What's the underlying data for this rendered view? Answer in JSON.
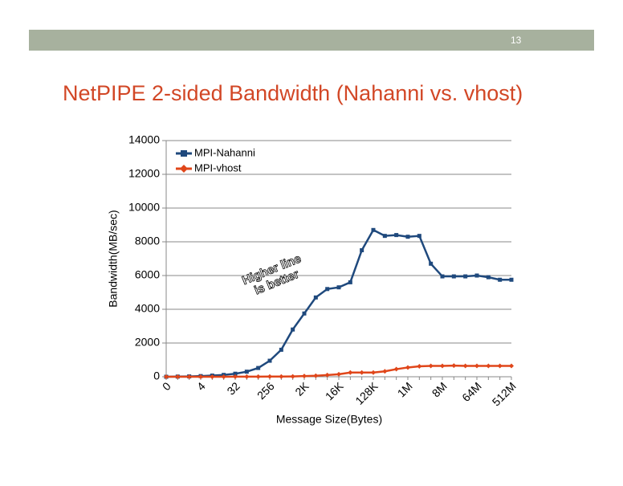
{
  "slide_number": "13",
  "chart_data": {
    "type": "line",
    "title": "NetPIPE 2-sided Bandwidth (Nahanni vs. vhost)",
    "x_label": "Message Size(Bytes)",
    "y_label": "Bandwidth(MB/sec)",
    "annotation": "Higher line is better",
    "categories": [
      "0",
      null,
      null,
      "4",
      null,
      null,
      "32",
      null,
      null,
      "256",
      null,
      null,
      "2K",
      null,
      null,
      "16K",
      null,
      null,
      "128K",
      null,
      null,
      "1M",
      null,
      null,
      "8M",
      null,
      null,
      "64M",
      null,
      null,
      "512M"
    ],
    "series": [
      {
        "name": "MPI-Nahanni",
        "color": "#1f497d",
        "values": [
          0,
          10,
          20,
          40,
          70,
          110,
          180,
          300,
          520,
          950,
          1600,
          2800,
          3750,
          4700,
          5200,
          5300,
          5600,
          7500,
          8700,
          8350,
          8400,
          8300,
          8350,
          6700,
          5950,
          5950,
          5950,
          6000,
          5900,
          5750,
          5750
        ]
      },
      {
        "name": "MPI-vhost",
        "color": "#e0461a",
        "values": [
          0,
          0,
          0,
          0,
          0,
          0,
          5,
          5,
          5,
          10,
          10,
          20,
          40,
          60,
          100,
          150,
          250,
          250,
          250,
          320,
          450,
          550,
          620,
          640,
          640,
          660,
          640,
          640,
          640,
          640,
          640
        ]
      }
    ],
    "ylim": [
      0,
      14000
    ],
    "yticks": [
      0,
      2000,
      4000,
      6000,
      8000,
      10000,
      12000,
      14000
    ],
    "grid": true,
    "legend": "top-left"
  }
}
